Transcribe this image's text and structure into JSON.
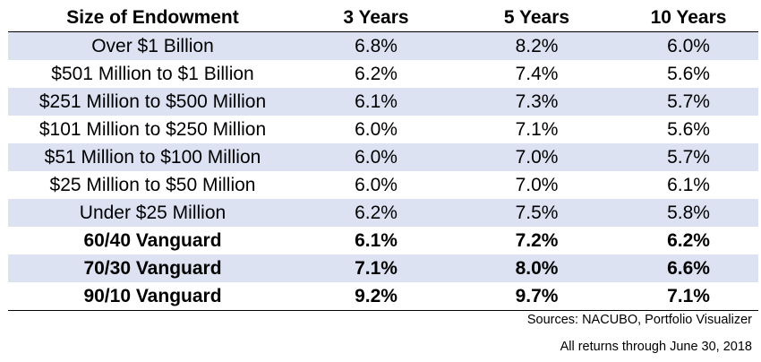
{
  "header": {
    "col0": "Size of Endowment",
    "col1": "3 Years",
    "col2": "5 Years",
    "col3": "10 Years"
  },
  "rows": [
    {
      "label": "Over $1 Billion",
      "y3": "6.8%",
      "y5": "8.2%",
      "y10": "6.0%",
      "shaded": true,
      "bold": false
    },
    {
      "label": "$501 Million to $1 Billion",
      "y3": "6.2%",
      "y5": "7.4%",
      "y10": "5.6%",
      "shaded": false,
      "bold": false
    },
    {
      "label": "$251 Million to $500 Million",
      "y3": "6.1%",
      "y5": "7.3%",
      "y10": "5.7%",
      "shaded": true,
      "bold": false
    },
    {
      "label": "$101 Million to $250 Million",
      "y3": "6.0%",
      "y5": "7.1%",
      "y10": "5.6%",
      "shaded": false,
      "bold": false
    },
    {
      "label": "$51 Million to $100 Million",
      "y3": "6.0%",
      "y5": "7.0%",
      "y10": "5.7%",
      "shaded": true,
      "bold": false
    },
    {
      "label": "$25 Million to $50 Million",
      "y3": "6.0%",
      "y5": "7.0%",
      "y10": "6.1%",
      "shaded": false,
      "bold": false
    },
    {
      "label": "Under $25 Million",
      "y3": "6.2%",
      "y5": "7.5%",
      "y10": "5.8%",
      "shaded": true,
      "bold": false
    },
    {
      "label": "60/40 Vanguard",
      "y3": "6.1%",
      "y5": "7.2%",
      "y10": "6.2%",
      "shaded": false,
      "bold": true
    },
    {
      "label": "70/30 Vanguard",
      "y3": "7.1%",
      "y5": "8.0%",
      "y10": "6.6%",
      "shaded": true,
      "bold": true
    },
    {
      "label": "90/10 Vanguard",
      "y3": "9.2%",
      "y5": "9.7%",
      "y10": "7.1%",
      "shaded": false,
      "bold": true
    }
  ],
  "footnotes": {
    "sources": "Sources: NACUBO, Portfolio Visualizer",
    "returns_date": "All returns through June 30, 2018"
  },
  "colors": {
    "shaded_row": "#dce2f2",
    "rule": "#000000"
  }
}
